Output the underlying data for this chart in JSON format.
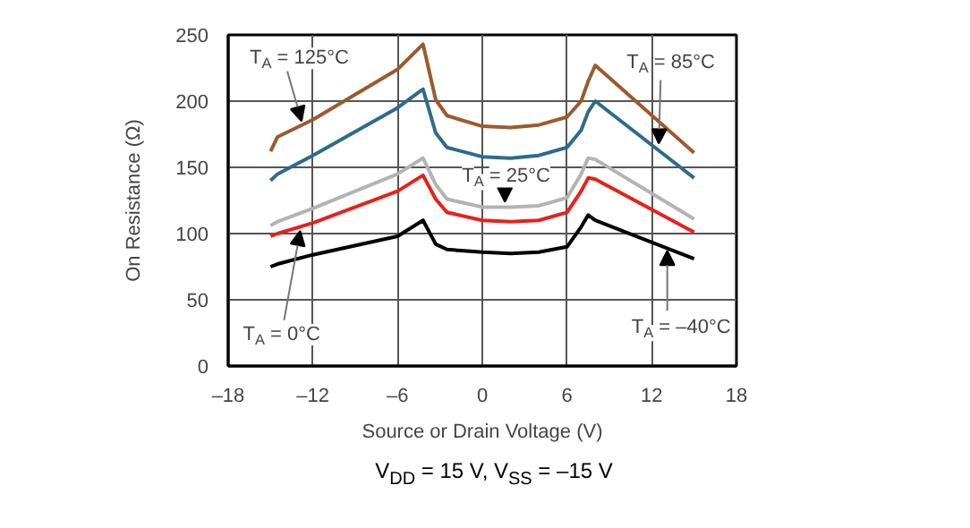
{
  "chart_data": {
    "type": "line",
    "xlabel": "Source or Drain Voltage (V)",
    "ylabel": "On Resistance (Ω)",
    "xlim": [
      -18,
      18
    ],
    "ylim": [
      0,
      250
    ],
    "xticks": [
      {
        "value": -18,
        "label": "–18"
      },
      {
        "value": -12,
        "label": "–12"
      },
      {
        "value": -6,
        "label": "–6"
      },
      0,
      6,
      12,
      18
    ],
    "yticks": [
      0,
      50,
      100,
      150,
      200,
      250
    ],
    "grid": true,
    "marker": "none",
    "line_style": "solid",
    "x": [
      -15,
      -14.5,
      -12,
      -6,
      -4.2,
      -3.3,
      -2.5,
      0,
      2,
      4,
      6,
      7,
      7.5,
      8,
      15
    ],
    "series": [
      {
        "color": "#9c5a2c",
        "values": [
          162,
          173,
          186,
          224,
          243,
          201,
          189,
          181,
          180,
          182,
          188,
          200,
          215,
          227,
          161
        ]
      },
      {
        "color": "#2e6b8a",
        "values": [
          140,
          145,
          159,
          195,
          209,
          176,
          165,
          158,
          157,
          159,
          165,
          178,
          192,
          200,
          142
        ]
      },
      {
        "color": "#b3b3b3",
        "values": [
          106,
          109,
          119,
          145,
          157,
          137,
          126,
          120,
          120,
          121,
          127,
          145,
          157,
          156,
          111
        ]
      },
      {
        "color": "#e8201c",
        "values": [
          98,
          100,
          108,
          132,
          144,
          126,
          116,
          110,
          109,
          110,
          116,
          132,
          142,
          141,
          101
        ]
      },
      {
        "color": "#000000",
        "values": [
          75,
          77,
          84,
          98,
          110,
          92,
          88,
          86,
          85,
          86,
          90,
          105,
          114,
          110,
          81
        ]
      }
    ],
    "annotations": [
      {
        "text": "T$_{A}$ = 125°C",
        "x": -12.8,
        "y": 185
      },
      {
        "text": "T$_{A}$ = 85°C",
        "x": 12.5,
        "y": 168
      },
      {
        "text": "T$_{A}$ = 25°C",
        "x": 1.6,
        "y": 124
      },
      {
        "text": "T$_{A}$ = 0°C",
        "x": -12.9,
        "y": 102
      },
      {
        "text": "T$_{A}$ = –40°C",
        "x": 13.1,
        "y": 87
      },
      "V$_{DD}$ = 15 V, V$_{SS}$ = –15 V"
    ]
  }
}
